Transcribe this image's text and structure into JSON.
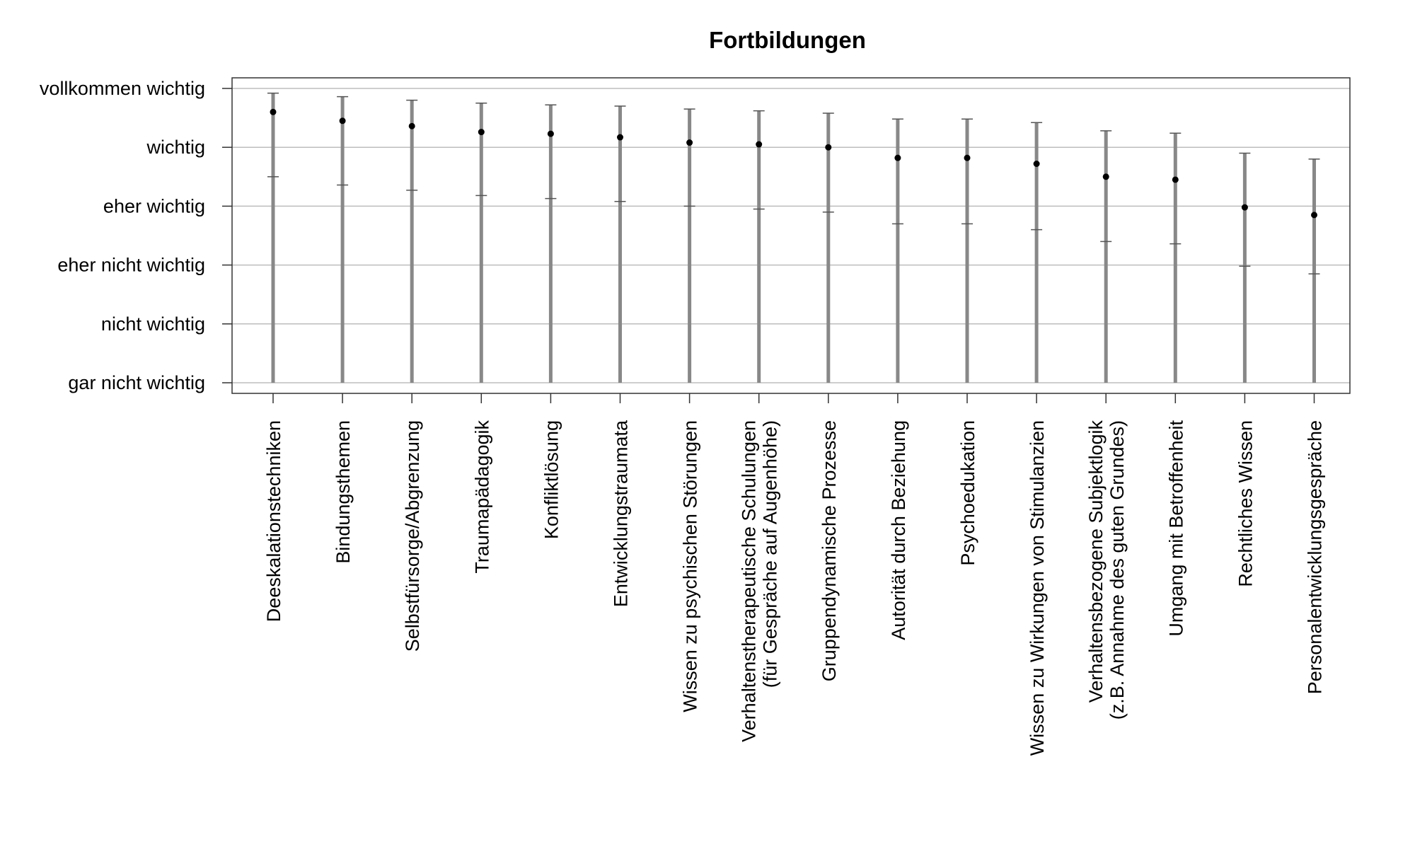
{
  "chart_data": {
    "type": "scatter",
    "title": "Fortbildungen",
    "xlabel": "",
    "ylabel": "",
    "ylim": [
      0,
      5
    ],
    "y_tick_values": [
      0,
      1,
      2,
      3,
      4,
      5
    ],
    "y_tick_labels": [
      "gar nicht wichtig",
      "nicht wichtig",
      "eher nicht wichtig",
      "eher wichtig",
      "wichtig",
      "vollkommen wichtig"
    ],
    "grid": true,
    "categories": [
      [
        "Deeskalationstechniken"
      ],
      [
        "Bindungsthemen"
      ],
      [
        "Selbstfürsorge/Abgrenzung"
      ],
      [
        "Traumapädagogik"
      ],
      [
        "Konfliktlösung"
      ],
      [
        "Entwicklungstraumata"
      ],
      [
        "Wissen zu psychischen Störungen"
      ],
      [
        "Verhaltenstherapeutische Schulungen",
        "(für Gespräche auf Augenhöhe)"
      ],
      [
        "Gruppendynamische Prozesse"
      ],
      [
        "Autorität durch Beziehung"
      ],
      [
        "Psychoedukation"
      ],
      [
        "Wissen zu Wirkungen von Stimulanzien"
      ],
      [
        "Verhaltensbezogene Subjektlogik",
        "(z.B. Annahme des guten Grundes)"
      ],
      [
        "Umgang mit Betroffenheit"
      ],
      [
        "Rechtliches Wissen"
      ],
      [
        "Personalentwicklungsgespräche"
      ]
    ],
    "series": [
      {
        "values": [
          4.6,
          4.45,
          4.36,
          4.26,
          4.23,
          4.17,
          4.08,
          4.05,
          4.0,
          3.82,
          3.82,
          3.72,
          3.5,
          3.45,
          2.98,
          2.85
        ],
        "upper": [
          4.92,
          4.86,
          4.8,
          4.75,
          4.72,
          4.7,
          4.65,
          4.62,
          4.58,
          4.48,
          4.48,
          4.42,
          4.28,
          4.24,
          3.9,
          3.8
        ],
        "lower": [
          3.5,
          3.36,
          3.27,
          3.18,
          3.13,
          3.08,
          3.0,
          2.95,
          2.9,
          2.7,
          2.7,
          2.6,
          2.4,
          2.36,
          1.98,
          1.85
        ],
        "floor": 0
      }
    ],
    "colors": {
      "bar": "#888888",
      "point": "#000000",
      "whisker": "#555555",
      "grid": "#bdbdbd",
      "frame": "#333333"
    }
  }
}
